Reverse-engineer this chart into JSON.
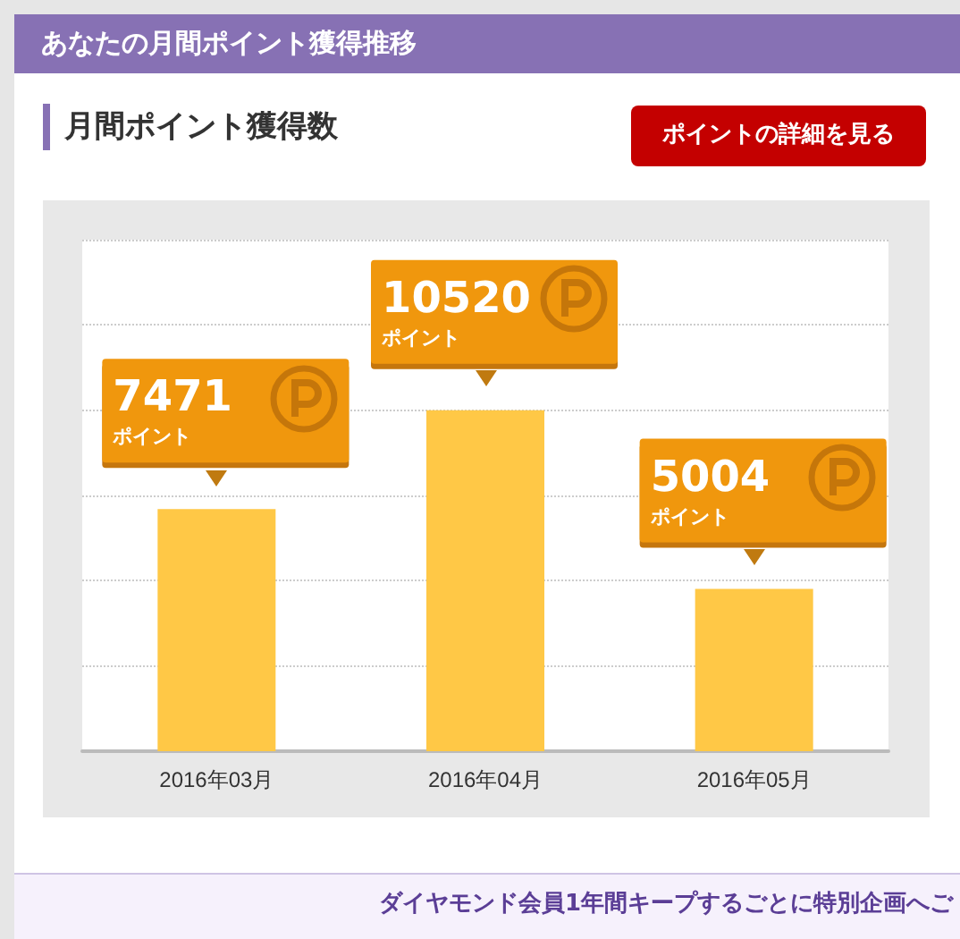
{
  "chart_data": {
    "type": "bar",
    "title": "あなたの月間ポイント獲得推移",
    "subtitle": "月間ポイント獲得数",
    "annotations": [
      "ポイントの詳細を見る",
      "ダイヤモンド会員1年間キープするごとに特別企画へご"
    ],
    "categories": [
      "2016年03月",
      "2016年04月",
      "2016年05月"
    ],
    "values": [
      7471,
      10520,
      5004
    ],
    "value_labels": [
      "7471\nポイント",
      "10520\nポイント",
      "5004\nポイント"
    ],
    "color": "#ffc846",
    "ylim": [
      0,
      15780
    ],
    "yticks": [
      {
        "value": 0,
        "label": null
      },
      {
        "value": 2630,
        "label": null
      },
      {
        "value": 5260,
        "label": null
      },
      {
        "value": 7890,
        "label": null
      },
      {
        "value": 10520,
        "label": null
      },
      {
        "value": 13150,
        "label": null
      },
      {
        "value": 15780,
        "label": null
      }
    ],
    "grid": "y",
    "tick_labels": "x"
  }
}
